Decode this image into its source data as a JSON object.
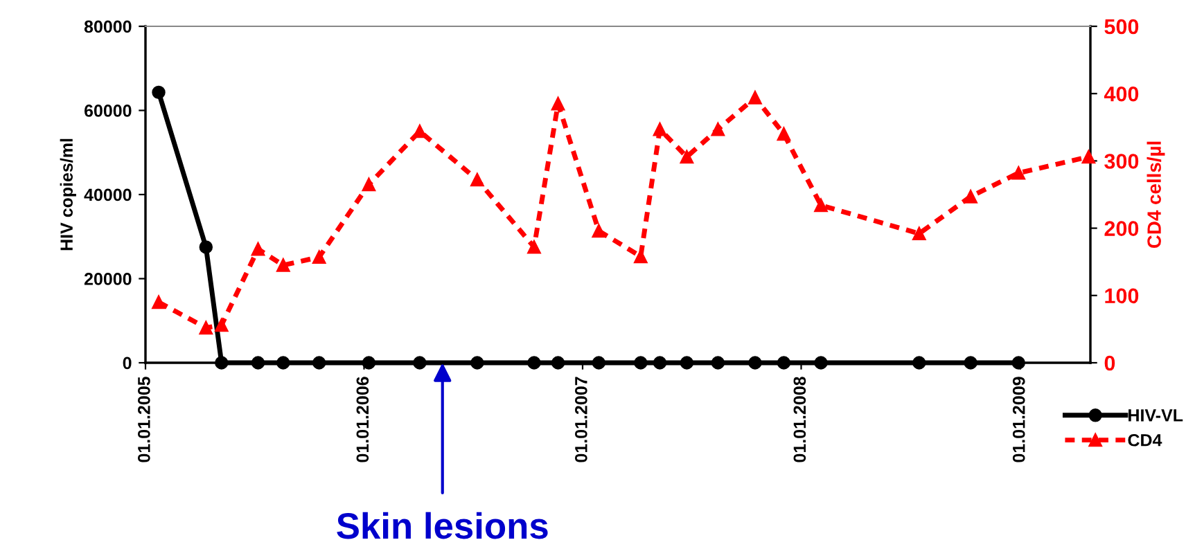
{
  "chart_data": {
    "type": "line",
    "ylabel": "HIV copies/ml",
    "y2label": "CD4 cells/µl",
    "xlim": [
      "2005-01-01",
      "2009-04-28"
    ],
    "xticks": [
      {
        "value": "2005-01-01",
        "label": "01.01.2005"
      },
      {
        "value": "2006-01-01",
        "label": "01.01.2006"
      },
      {
        "value": "2007-01-01",
        "label": "01.01.2007"
      },
      {
        "value": "2008-01-01",
        "label": "01.01.2008"
      },
      {
        "value": "2009-01-01",
        "label": "01.01.2009"
      }
    ],
    "ylim": [
      0,
      80000
    ],
    "yticks": [
      0,
      20000,
      40000,
      60000,
      80000
    ],
    "y2lim": [
      0,
      500
    ],
    "y2ticks": [
      0,
      100,
      200,
      300,
      400,
      500
    ],
    "legend": "bottom right",
    "grid": false,
    "annotations": [
      {
        "text": "Skin lesions",
        "x": "2006-05-12",
        "y": 0
      }
    ],
    "series": [
      {
        "name": "HIV-VL",
        "color": "#000000",
        "marker": "circle",
        "line_style": "solid",
        "x": [
          "2005-01-23",
          "2005-04-12",
          "2005-05-08",
          "2005-07-08",
          "2005-08-19",
          "2005-10-18",
          "2006-01-09",
          "2006-04-04",
          "2006-07-09",
          "2006-10-12",
          "2006-11-21",
          "2007-01-28",
          "2007-04-08",
          "2007-05-10",
          "2007-06-24",
          "2007-08-15",
          "2007-10-16",
          "2007-12-03",
          "2008-02-03",
          "2008-07-16",
          "2008-10-10",
          "2008-12-29"
        ],
        "values": [
          64300,
          27500,
          0,
          0,
          0,
          0,
          0,
          0,
          0,
          0,
          0,
          0,
          0,
          0,
          0,
          0,
          0,
          0,
          0,
          0,
          0,
          0
        ]
      },
      {
        "name": "CD4",
        "color": "#ff0000",
        "marker": "triangle",
        "line_style": "dashed",
        "axis": "y2",
        "x": [
          "2005-01-23",
          "2005-04-12",
          "2005-05-08",
          "2005-07-08",
          "2005-08-19",
          "2005-10-18",
          "2006-01-09",
          "2006-04-04",
          "2006-07-09",
          "2006-10-12",
          "2006-11-21",
          "2007-01-28",
          "2007-04-08",
          "2007-05-10",
          "2007-06-24",
          "2007-08-15",
          "2007-10-16",
          "2007-12-03",
          "2008-02-03",
          "2008-07-16",
          "2008-10-10",
          "2008-12-29",
          "2009-04-25"
        ],
        "values": [
          90,
          52,
          56,
          169,
          145,
          157,
          265,
          344,
          272,
          172,
          385,
          196,
          158,
          347,
          306,
          347,
          394,
          340,
          234,
          192,
          247,
          282,
          306
        ]
      }
    ]
  }
}
